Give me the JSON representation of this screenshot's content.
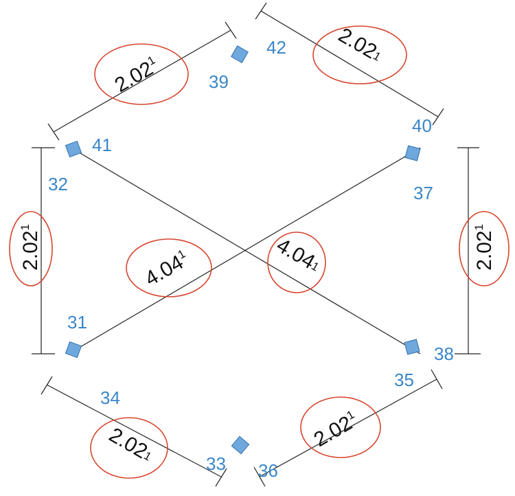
{
  "nodes": [
    {
      "label": "42"
    },
    {
      "label": "39"
    },
    {
      "label": "41"
    },
    {
      "label": "32"
    },
    {
      "label": "40"
    },
    {
      "label": "37"
    },
    {
      "label": "31"
    },
    {
      "label": "38"
    },
    {
      "label": "35"
    },
    {
      "label": "34"
    },
    {
      "label": "33"
    },
    {
      "label": "36"
    }
  ],
  "dimensions": [
    {
      "value": "2.02",
      "sup": "1"
    },
    {
      "value": "2.02",
      "sup": "1"
    },
    {
      "value": "2.02",
      "sup": "1"
    },
    {
      "value": "2.02",
      "sup": "1"
    },
    {
      "value": "4.04",
      "sup": "1"
    },
    {
      "value": "4.04",
      "sup": "1"
    },
    {
      "value": "2.02",
      "sup": "1"
    },
    {
      "value": "2.02",
      "sup": "1"
    }
  ]
}
